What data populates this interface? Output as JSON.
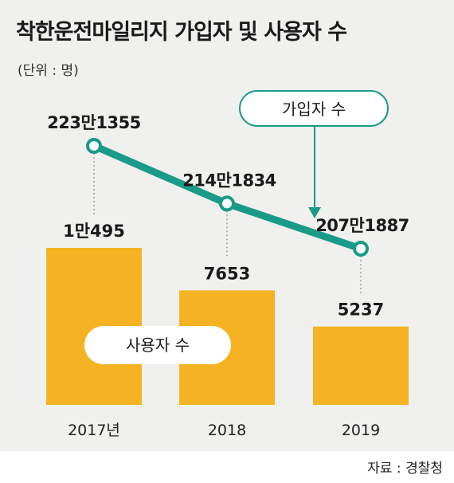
{
  "header": {
    "title": "착한운전마일리지 가입자 및 사용자 수",
    "unit": "(단위 : 명)"
  },
  "source": "자료 : 경찰청",
  "colors": {
    "bar": "#f5b324",
    "line": "#1a9a88",
    "panel": "#f0f0ee"
  },
  "chart_data": {
    "type": "bar",
    "categories": [
      "2017년",
      "2018",
      "2019"
    ],
    "series": [
      {
        "name": "사용자 수",
        "type": "bar",
        "values": [
          10495,
          7653,
          5237
        ],
        "labels": [
          "1만495",
          "7653",
          "5237"
        ]
      },
      {
        "name": "가입자 수",
        "type": "line",
        "values": [
          2231355,
          2141834,
          2071887
        ],
        "labels": [
          "223만1355",
          "214만1834",
          "207만1887"
        ]
      }
    ]
  }
}
